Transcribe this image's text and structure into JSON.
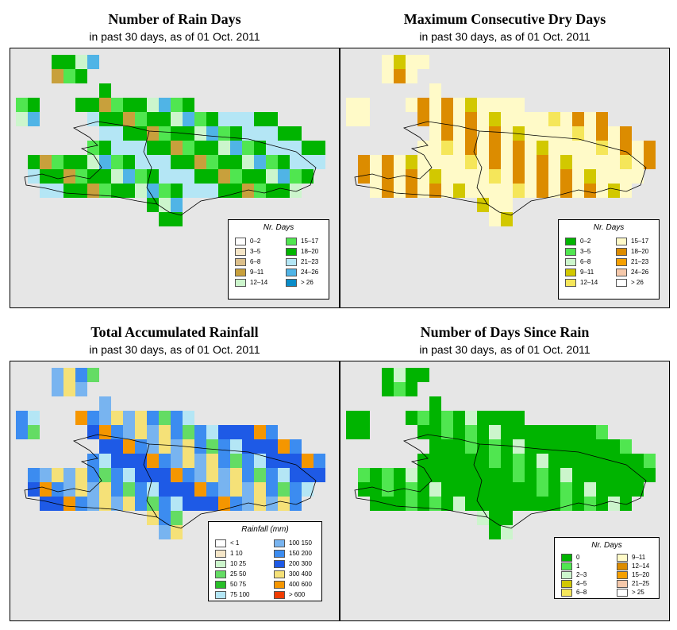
{
  "panels": [
    {
      "title": "Number of Rain Days",
      "subtitle": "in past 30 days, as of  01 Oct. 2011",
      "legend_title": "Nr. Days",
      "legend": [
        {
          "label": "0–2",
          "color": "#ffffff"
        },
        {
          "label": "3–5",
          "color": "#f5e6c8"
        },
        {
          "label": "6–8",
          "color": "#dcc08c"
        },
        {
          "label": "9–11",
          "color": "#c8a03c"
        },
        {
          "label": "12–14",
          "color": "#ccf5cc"
        },
        {
          "label": "15–17",
          "color": "#50e650"
        },
        {
          "label": "18–20",
          "color": "#00b400"
        },
        {
          "label": "21–23",
          "color": "#b4e6f5"
        },
        {
          "label": "24–26",
          "color": "#50b4e6"
        },
        {
          "label": "> 26",
          "color": "#0a8cc8"
        }
      ]
    },
    {
      "title": "Maximum Consecutive Dry Days",
      "subtitle": "in past 30 days, as of  01 Oct. 2011",
      "legend_title": "Nr. Days",
      "legend": [
        {
          "label": "0–2",
          "color": "#00b400"
        },
        {
          "label": "3–5",
          "color": "#50e650"
        },
        {
          "label": "6–8",
          "color": "#ccf5cc"
        },
        {
          "label": "9–11",
          "color": "#d2c800"
        },
        {
          "label": "12–14",
          "color": "#f5e65a"
        },
        {
          "label": "15–17",
          "color": "#fffac8"
        },
        {
          "label": "18–20",
          "color": "#dc8c00"
        },
        {
          "label": "21–23",
          "color": "#f5a000"
        },
        {
          "label": "24–26",
          "color": "#f5c8aa"
        },
        {
          "label": "> 26",
          "color": "#ffffff"
        }
      ]
    },
    {
      "title": "Total Accumulated Rainfall",
      "subtitle": "in past 30 days, as of  01 Oct. 2011",
      "legend_title": "Rainfall (mm)",
      "legend": [
        {
          "label": "< 1",
          "color": "#ffffff"
        },
        {
          "label": "1    10",
          "color": "#f5e6c8"
        },
        {
          "label": "10    25",
          "color": "#ccf5cc"
        },
        {
          "label": "25    50",
          "color": "#64dc64"
        },
        {
          "label": "50    75",
          "color": "#28be28"
        },
        {
          "label": "75   100",
          "color": "#b4e6f5"
        },
        {
          "label": "100   150",
          "color": "#78b4f0"
        },
        {
          "label": "150   200",
          "color": "#3c8cf0"
        },
        {
          "label": "200   300",
          "color": "#1e5ae6"
        },
        {
          "label": "300   400",
          "color": "#f5e178"
        },
        {
          "label": "400   600",
          "color": "#f59600"
        },
        {
          "label": "> 600",
          "color": "#f03c00"
        }
      ]
    },
    {
      "title": "Number of Days Since Rain",
      "subtitle": "in past 30 days, as of  01 Oct. 2011",
      "legend_title": "Nr. Days",
      "legend": [
        {
          "label": "0",
          "color": "#00b400"
        },
        {
          "label": "1",
          "color": "#50e650"
        },
        {
          "label": "2–3",
          "color": "#ccf5cc"
        },
        {
          "label": "4–5",
          "color": "#d2c800"
        },
        {
          "label": "6–8",
          "color": "#f5e65a"
        },
        {
          "label": "9–11",
          "color": "#fffac8"
        },
        {
          "label": "12–14",
          "color": "#dc8c00"
        },
        {
          "label": "15–20",
          "color": "#f5a000"
        },
        {
          "label": "21–25",
          "color": "#f5c8aa"
        },
        {
          "label": "> 25",
          "color": "#ffffff"
        }
      ]
    }
  ]
}
